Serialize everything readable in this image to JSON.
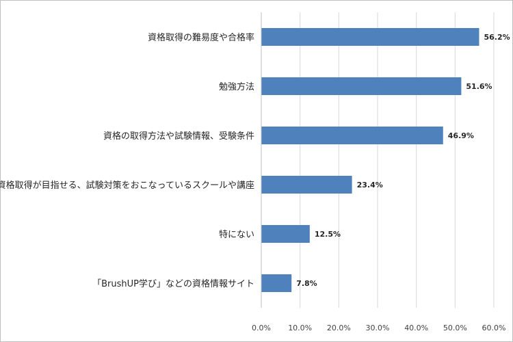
{
  "chart_data": {
    "type": "bar",
    "orientation": "horizontal",
    "categories": [
      "資格取得の難易度や合格率",
      "勉強方法",
      "資格の取得方法や試験情報、受験条件",
      "資格取得が目指せる、試験対策をおこなっているスクールや講座",
      "特にない",
      "「BrushUP学び」などの資格情報サイト"
    ],
    "values": [
      56.2,
      51.6,
      46.9,
      23.4,
      12.5,
      7.8
    ],
    "value_labels": [
      "56.2%",
      "51.6%",
      "46.9%",
      "23.4%",
      "12.5%",
      "7.8%"
    ],
    "xlim": [
      0,
      60
    ],
    "ticks": [
      "0.0%",
      "10.0%",
      "20.0%",
      "30.0%",
      "40.0%",
      "50.0%",
      "60.0%"
    ],
    "grid": true,
    "bar_color": "#4f81bd",
    "grid_color": "#d9d9d9"
  }
}
